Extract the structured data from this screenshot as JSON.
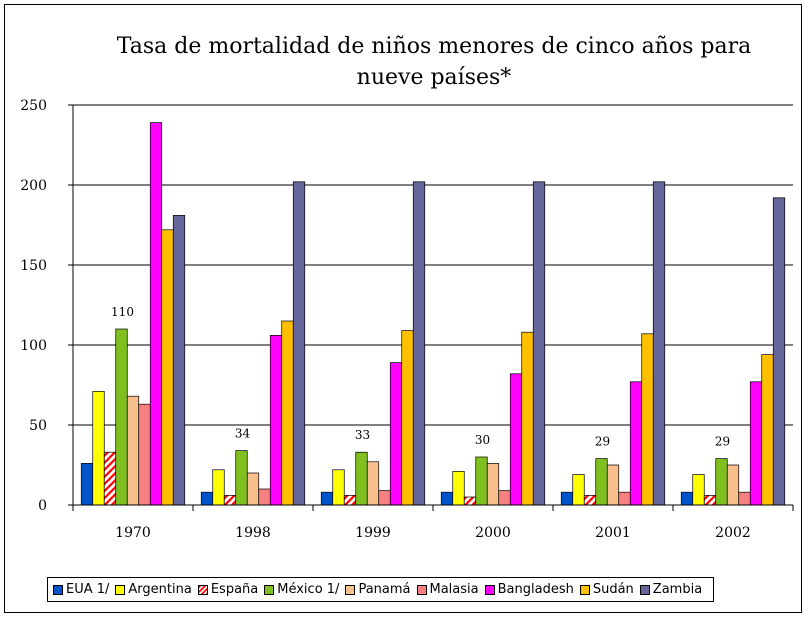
{
  "chart_data": {
    "type": "bar",
    "title_lines": [
      "Tasa de mortalidad de niños menores de cinco años para",
      "nueve países*"
    ],
    "xlabel": "",
    "ylabel": "",
    "ylim": [
      0,
      250
    ],
    "y_ticks": [
      "0",
      "50",
      "100",
      "150",
      "200",
      "250"
    ],
    "grid": true,
    "legend_position": "bottom",
    "categories": [
      "1970",
      "1998",
      "1999",
      "2000",
      "2001",
      "2002"
    ],
    "series": [
      {
        "name": "EUA 1/",
        "color": "#0055cc",
        "values": [
          26,
          8,
          8,
          8,
          8,
          8
        ]
      },
      {
        "name": "Argentina",
        "color": "#ffff00",
        "values": [
          71,
          22,
          22,
          21,
          19,
          19
        ]
      },
      {
        "name": "España",
        "color": "hatch-red",
        "values": [
          33,
          6,
          6,
          5,
          6,
          6
        ]
      },
      {
        "name": "México 1/",
        "color": "#7fbf1f",
        "values": [
          110,
          34,
          33,
          30,
          29,
          29
        ]
      },
      {
        "name": "Panamá",
        "color": "#f9c08f",
        "values": [
          68,
          20,
          27,
          26,
          25,
          25
        ]
      },
      {
        "name": "Malasia",
        "color": "#f98080",
        "values": [
          63,
          10,
          9,
          9,
          8,
          8
        ]
      },
      {
        "name": "Bangladesh",
        "color": "#ff00ff",
        "values": [
          239,
          106,
          89,
          82,
          77,
          77
        ]
      },
      {
        "name": "Sudán",
        "color": "#ffc000",
        "values": [
          172,
          115,
          109,
          108,
          107,
          94
        ]
      },
      {
        "name": "Zambia",
        "color": "#66669a",
        "values": [
          181,
          202,
          202,
          202,
          202,
          192
        ]
      }
    ],
    "data_labels": [
      {
        "series": "México 1/",
        "category": "1970",
        "text": "110"
      },
      {
        "series": "México 1/",
        "category": "1998",
        "text": "34"
      },
      {
        "series": "México 1/",
        "category": "1999",
        "text": "33"
      },
      {
        "series": "México 1/",
        "category": "2000",
        "text": "30"
      },
      {
        "series": "México 1/",
        "category": "2001",
        "text": "29"
      },
      {
        "series": "México 1/",
        "category": "2002",
        "text": "29"
      }
    ]
  }
}
